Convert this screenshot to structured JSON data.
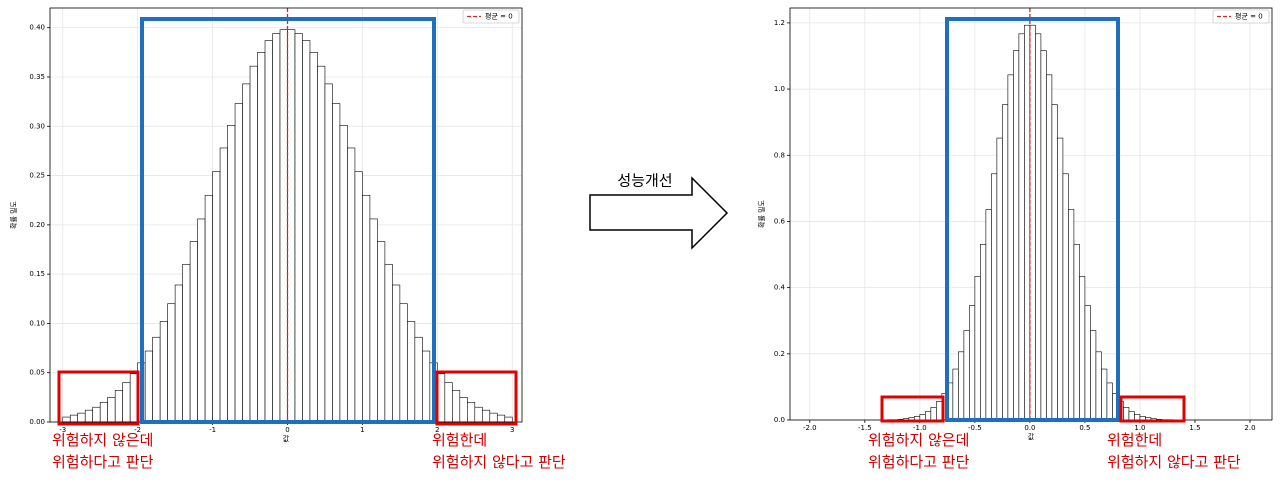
{
  "chart_data": [
    {
      "type": "histogram",
      "xlabel": "값",
      "ylabel": "확률 밀도",
      "bar_color": "#ffffff",
      "edge_color": "#000000",
      "mean": 0,
      "mean_label": "평균 = 0",
      "mean_color": "#d62728",
      "grid": true,
      "legend": "upper right",
      "bins": [
        -3.0,
        -2.9,
        -2.8,
        -2.7,
        -2.6,
        -2.5,
        -2.4,
        -2.3,
        -2.2,
        -2.1,
        -2.0,
        -1.9,
        -1.8,
        -1.7,
        -1.6,
        -1.5,
        -1.4,
        -1.3,
        -1.2,
        -1.1,
        -1.0,
        -0.9,
        -0.8,
        -0.7,
        -0.6,
        -0.5,
        -0.4,
        -0.3,
        -0.2,
        -0.1,
        0,
        0.1,
        0.2,
        0.3,
        0.4,
        0.5,
        0.6,
        0.7,
        0.8,
        0.9,
        1.0,
        1.1,
        1.2,
        1.3,
        1.4,
        1.5,
        1.6,
        1.7,
        1.8,
        1.9,
        2.0,
        2.1,
        2.2,
        2.3,
        2.4,
        2.5,
        2.6,
        2.7,
        2.8,
        2.9,
        3.0
      ],
      "values": [
        0.005,
        0.007,
        0.009,
        0.012,
        0.015,
        0.02,
        0.025,
        0.032,
        0.04,
        0.049,
        0.06,
        0.072,
        0.086,
        0.102,
        0.12,
        0.139,
        0.16,
        0.183,
        0.206,
        0.23,
        0.254,
        0.278,
        0.301,
        0.323,
        0.343,
        0.361,
        0.375,
        0.387,
        0.394,
        0.398,
        0.398,
        0.394,
        0.387,
        0.375,
        0.361,
        0.343,
        0.323,
        0.301,
        0.278,
        0.254,
        0.23,
        0.206,
        0.183,
        0.16,
        0.139,
        0.12,
        0.102,
        0.086,
        0.072,
        0.06,
        0.049,
        0.04,
        0.032,
        0.025,
        0.02,
        0.015,
        0.012,
        0.009,
        0.007,
        0.005
      ],
      "xlim": [
        -3.17,
        3.13
      ],
      "ylim": [
        0,
        0.42
      ],
      "xticks": [
        -3,
        -2,
        -1,
        0,
        1,
        2,
        3
      ],
      "yticks": [
        {
          "value": 0,
          "label": "0.00"
        },
        0.05,
        {
          "value": 0.1,
          "label": "0.10"
        },
        0.15,
        {
          "value": 0.2,
          "label": "0.20"
        },
        0.25,
        {
          "value": 0.3,
          "label": "0.30"
        },
        0.35,
        {
          "value": 0.4,
          "label": "0.40"
        }
      ],
      "annotations": [
        [
          "위험하지 않은데",
          "위험하다고 판단"
        ],
        [
          "위험한데",
          "위험하지 않다고 판단"
        ]
      ]
    },
    {
      "type": "histogram",
      "xlabel": "값",
      "ylabel": "확률 밀도",
      "bar_color": "#ffffff",
      "edge_color": "#000000",
      "mean": 0,
      "mean_label": "평균 = 0",
      "mean_color": "#d62728",
      "grid": true,
      "legend": "upper right",
      "bins": [
        -1.3,
        -1.25,
        -1.2,
        -1.15,
        -1.1,
        -1.05,
        -1.0,
        -0.95,
        -0.9,
        -0.85,
        -0.8,
        -0.75,
        -0.7,
        -0.65,
        -0.6,
        -0.55,
        -0.5,
        -0.45,
        -0.4,
        -0.35,
        -0.3,
        -0.25,
        -0.2,
        -0.15,
        -0.1,
        -0.05,
        0,
        0.05,
        0.1,
        0.15,
        0.2,
        0.25,
        0.3,
        0.35,
        0.4,
        0.45,
        0.5,
        0.55,
        0.6,
        0.65,
        0.7,
        0.75,
        0.8,
        0.85,
        0.9,
        0.95,
        1.0,
        1.05,
        1.1,
        1.15,
        1.2,
        1.25,
        1.3
      ],
      "values": [
        0.001,
        0.001,
        0.002,
        0.004,
        0.007,
        0.011,
        0.017,
        0.025,
        0.038,
        0.056,
        0.08,
        0.112,
        0.154,
        0.206,
        0.27,
        0.346,
        0.434,
        0.531,
        0.636,
        0.744,
        0.852,
        0.953,
        1.043,
        1.116,
        1.167,
        1.193,
        1.193,
        1.167,
        1.116,
        1.043,
        0.953,
        0.852,
        0.744,
        0.636,
        0.531,
        0.434,
        0.346,
        0.27,
        0.206,
        0.154,
        0.112,
        0.08,
        0.056,
        0.038,
        0.025,
        0.017,
        0.011,
        0.007,
        0.004,
        0.002,
        0.001,
        0.001
      ],
      "xlim": [
        -2.18,
        2.2
      ],
      "ylim": [
        0,
        1.245
      ],
      "xticks": [
        {
          "value": -2,
          "label": "-2.0"
        },
        -1.5,
        {
          "value": -1,
          "label": "-1.0"
        },
        -0.5,
        {
          "value": 0,
          "label": "0.0"
        },
        0.5,
        {
          "value": 1,
          "label": "1.0"
        },
        1.5,
        {
          "value": 2,
          "label": "2.0"
        }
      ],
      "yticks": [
        {
          "value": 0,
          "label": "0.0"
        },
        0.2,
        0.4,
        0.6,
        0.8,
        {
          "value": 1,
          "label": "1.0"
        },
        1.2
      ],
      "annotations": [
        [
          "위험하지 않은데",
          "위험하다고 판단"
        ],
        [
          "위험한데",
          "위험하지 않다고 판단"
        ]
      ]
    }
  ],
  "arrow_label": "성능개선"
}
